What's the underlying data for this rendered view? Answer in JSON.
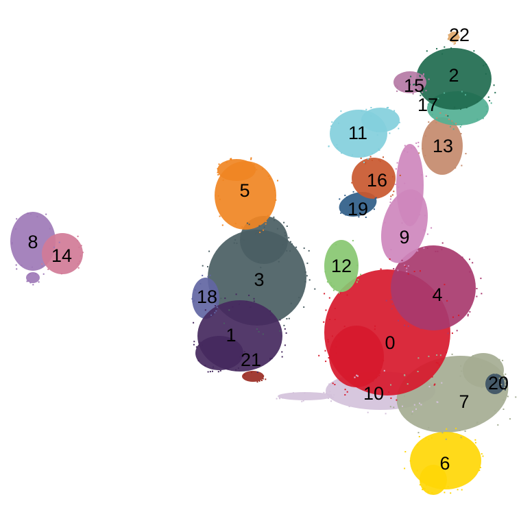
{
  "chart_data": {
    "type": "scatter",
    "title": "",
    "xlabel": "",
    "ylabel": "",
    "grid": false,
    "axes_visible": false,
    "legend": "none",
    "clusters": [
      {
        "label": "0",
        "color": "#d7192c"
      },
      {
        "label": "1",
        "color": "#45295e"
      },
      {
        "label": "2",
        "color": "#1f6b4f"
      },
      {
        "label": "3",
        "color": "#4a5e63"
      },
      {
        "label": "4",
        "color": "#a8396e"
      },
      {
        "label": "5",
        "color": "#f08523"
      },
      {
        "label": "6",
        "color": "#ffd707"
      },
      {
        "label": "7",
        "color": "#a5ad93"
      },
      {
        "label": "8",
        "color": "#9e79b7"
      },
      {
        "label": "9",
        "color": "#ce87bd"
      },
      {
        "label": "10",
        "color": "#d4c2db"
      },
      {
        "label": "11",
        "color": "#83cfdc"
      },
      {
        "label": "12",
        "color": "#88c771"
      },
      {
        "label": "13",
        "color": "#c48a6c"
      },
      {
        "label": "14",
        "color": "#d17b97"
      },
      {
        "label": "15",
        "color": "#b57aa5"
      },
      {
        "label": "16",
        "color": "#c9582f"
      },
      {
        "label": "17",
        "color": "#52b094"
      },
      {
        "label": "18",
        "color": "#6266a3"
      },
      {
        "label": "19",
        "color": "#2f5d88"
      },
      {
        "label": "20",
        "color": "#3d5365"
      },
      {
        "label": "21",
        "color": "#9a2d24"
      },
      {
        "label": "22",
        "color": "#e0a86b"
      }
    ]
  }
}
